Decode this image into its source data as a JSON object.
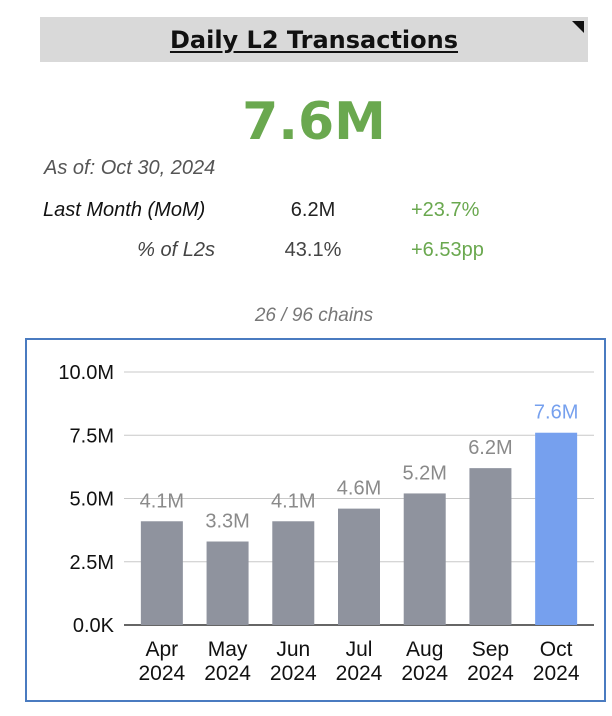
{
  "header": {
    "title": "Daily L2 Transactions"
  },
  "headline": {
    "value": "7.6M"
  },
  "as_of": "As of: Oct 30, 2024",
  "stats": {
    "last_month": {
      "label": "Last Month (MoM)",
      "value": "6.2M",
      "change": "+23.7%"
    },
    "pct_of_l2s": {
      "label": "% of L2s",
      "value": "43.1%",
      "change": "+6.53pp"
    }
  },
  "chains_note": "26 / 96 chains",
  "colors": {
    "accent_green": "#6aa84f",
    "bar_default": "#8f939e",
    "bar_highlight": "#76a0ee",
    "frame": "#4a7bc0"
  },
  "chart_data": {
    "type": "bar",
    "categories": [
      [
        "Apr",
        "2024"
      ],
      [
        "May",
        "2024"
      ],
      [
        "Jun",
        "2024"
      ],
      [
        "Jul",
        "2024"
      ],
      [
        "Aug",
        "2024"
      ],
      [
        "Sep",
        "2024"
      ],
      [
        "Oct",
        "2024"
      ]
    ],
    "values": [
      4.1,
      3.3,
      4.1,
      4.6,
      5.2,
      6.2,
      7.6
    ],
    "data_labels": [
      "4.1M",
      "3.3M",
      "4.1M",
      "4.6M",
      "5.2M",
      "6.2M",
      "7.6M"
    ],
    "ylim": [
      0,
      10
    ],
    "yticks": [
      0,
      2.5,
      5,
      7.5,
      10
    ],
    "ytick_labels": [
      "0.0K",
      "2.5M",
      "5.0M",
      "7.5M",
      "10.0M"
    ],
    "highlight_index": 6,
    "grid": true,
    "legend": "none"
  }
}
